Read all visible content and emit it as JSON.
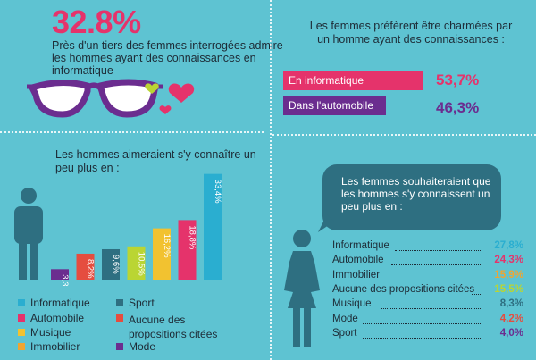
{
  "colors": {
    "background": "#5ec3d2",
    "pink": "#e5336b",
    "purple": "#6b2d8f",
    "dark_teal": "#2e6f81",
    "yellow": "#f2c230",
    "green": "#bad533",
    "orange": "#f0a531",
    "red": "#e54d3f",
    "cyan": "#2aaed0",
    "navy": "#1d2b36"
  },
  "header": {
    "stat": "32.8%",
    "intro": "Près d'un tiers des femmes interrogées admire les hommes ayant des connaissances en informatique"
  },
  "question1": {
    "text": "Les femmes préfèrent être charmées par un homme ayant des connaissances :",
    "options": [
      {
        "label": "En informatique",
        "value": "53,7%"
      },
      {
        "label": "Dans l'automobile",
        "value": "46,3%"
      }
    ]
  },
  "men_section": {
    "title": "Les hommes aimeraient s'y connaître un peu plus en :",
    "legend": [
      "Informatique",
      "Automobile",
      "Musique",
      "Immobilier",
      "Sport",
      "Aucune des propositions citées",
      "Mode"
    ]
  },
  "women_section": {
    "title": "Les femmes souhaiteraient que les hommes s'y connaissent un peu plus en :",
    "rows": [
      {
        "label": "Informatique",
        "value": "27,8%"
      },
      {
        "label": "Automobile",
        "value": "24,3%"
      },
      {
        "label": "Immobilier",
        "value": "15,9%"
      },
      {
        "label": "Aucune des propositions citées",
        "value": "15,5%"
      },
      {
        "label": "Musique",
        "value": "8,3%"
      },
      {
        "label": "Mode",
        "value": "4,2%"
      },
      {
        "label": "Sport",
        "value": "4,0%"
      }
    ]
  },
  "chart_data": {
    "type": "bar",
    "categories": [
      "Mode",
      "Aucune des propositions citées",
      "Sport",
      "Immobilier",
      "Musique",
      "Automobile",
      "Informatique"
    ],
    "values": [
      3.3,
      8.2,
      9.6,
      10.5,
      16.2,
      18.8,
      33.4
    ],
    "labels": [
      "3,3%",
      "8,2%",
      "9,6%",
      "10,5%",
      "16,2%",
      "18,8%",
      "33,4%"
    ],
    "colors": [
      "#6b2d8f",
      "#e54d3f",
      "#2e6f81",
      "#bad533",
      "#f2c230",
      "#e5336b",
      "#2aaed0"
    ],
    "title": "Les hommes aimeraient s'y connaître un peu plus en :",
    "xlabel": "",
    "ylabel": "",
    "ylim": [
      0,
      35
    ]
  }
}
